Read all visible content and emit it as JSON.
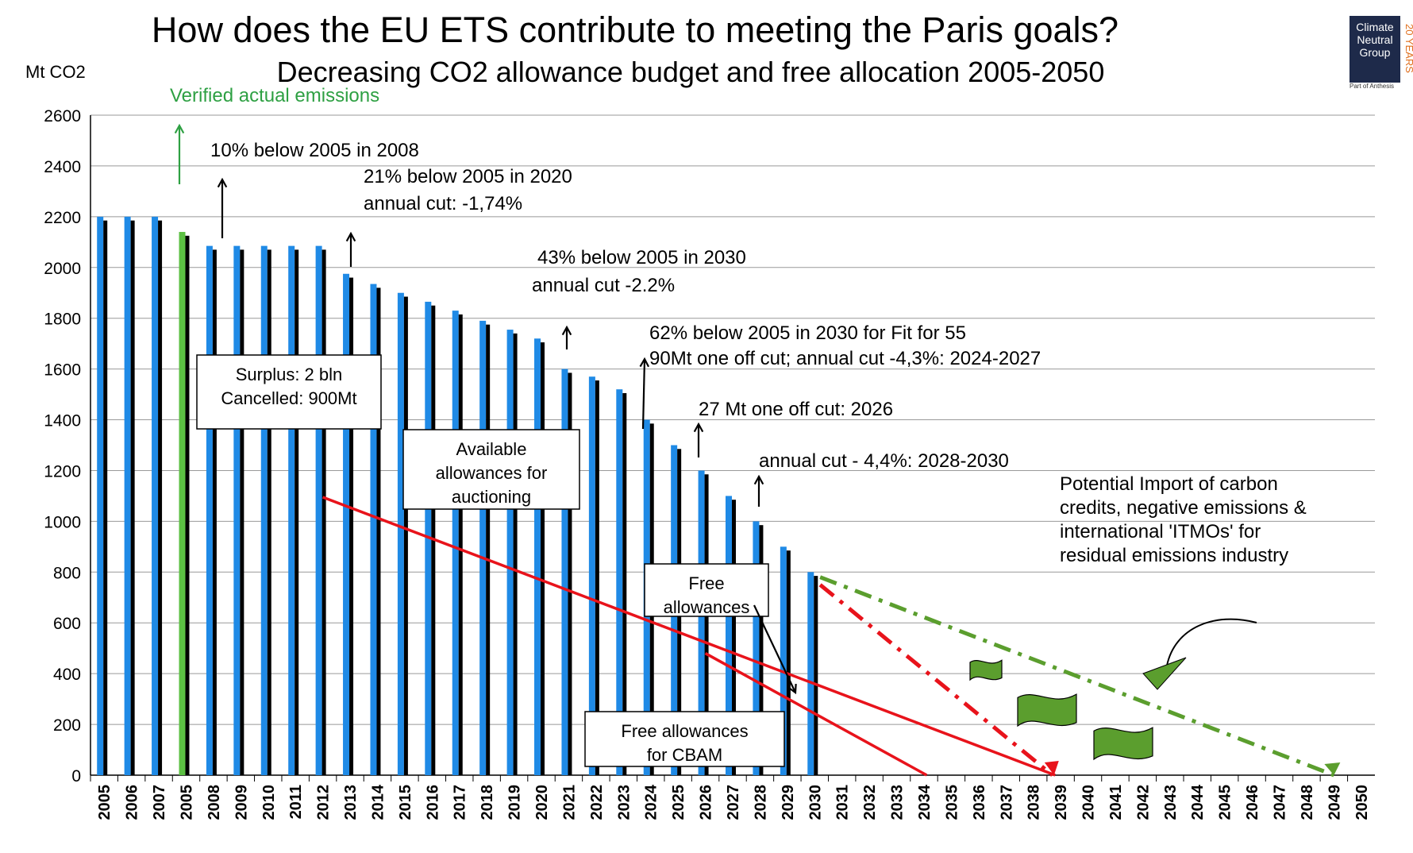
{
  "header": {
    "title": "How does the EU ETS contribute to meeting the Paris goals?",
    "subtitle": "Decreasing CO2 allowance budget and free allocation  2005-2050",
    "y_unit": "Mt CO2"
  },
  "logo": {
    "lines": [
      "Climate",
      "Neutral",
      "Group"
    ],
    "sub": "Part of Anthesis",
    "years": "20 YEARS"
  },
  "colors": {
    "blue_bar": "#1f8ae6",
    "black_bar": "#000000",
    "verified_bar": "#5cc043",
    "red_line": "#e8131b",
    "green_line": "#5b9e2e",
    "green_text": "#2ea043",
    "gridline": "#999999"
  },
  "chart_data": {
    "type": "bar",
    "ylim": [
      0,
      2600
    ],
    "yticks": [
      0,
      200,
      400,
      600,
      800,
      1000,
      1200,
      1400,
      1600,
      1800,
      2000,
      2200,
      2400,
      2600
    ],
    "categories": [
      "2005",
      "2006",
      "2007",
      "2005",
      "2008",
      "2009",
      "2010",
      "2011",
      "2012",
      "2013",
      "2014",
      "2015",
      "2016",
      "2017",
      "2018",
      "2019",
      "2020",
      "2021",
      "2022",
      "2023",
      "2024",
      "2025",
      "2026",
      "2027",
      "2028",
      "2029",
      "2030",
      "2031",
      "2032",
      "2033",
      "2034",
      "2035",
      "2036",
      "2037",
      "2038",
      "2039",
      "2040",
      "2041",
      "2042",
      "2043",
      "2044",
      "2045",
      "2046",
      "2047",
      "2048",
      "2049",
      "2050"
    ],
    "series": [
      {
        "values": [
          2200,
          2200,
          2200,
          2140,
          2085,
          2085,
          2085,
          2085,
          2085,
          1975,
          1935,
          1900,
          1865,
          1830,
          1790,
          1755,
          1720,
          1600,
          1570,
          1520,
          1400,
          1300,
          1200,
          1100,
          1000,
          900,
          800,
          null,
          null,
          null,
          null,
          null,
          null,
          null,
          null,
          null,
          null,
          null,
          null,
          null,
          null,
          null,
          null,
          null,
          null,
          null,
          null
        ]
      },
      {
        "values": [
          2185,
          2185,
          2185,
          2125,
          2070,
          2070,
          2070,
          2070,
          2070,
          1960,
          1920,
          1885,
          1850,
          1815,
          1775,
          1740,
          1705,
          1585,
          1555,
          1505,
          1385,
          1285,
          1185,
          1085,
          985,
          885,
          785,
          null,
          null,
          null,
          null,
          null,
          null,
          null,
          null,
          null,
          null,
          null,
          null,
          null,
          null,
          null,
          null,
          null,
          null,
          null,
          null
        ]
      }
    ],
    "highlight_index": 3,
    "lines": [
      {
        "style": "solid-red",
        "x": [
          2012,
          2038.8
        ],
        "y": [
          1095,
          0
        ]
      },
      {
        "style": "solid-red",
        "x": [
          2026,
          2034.1
        ],
        "y": [
          480,
          0
        ]
      },
      {
        "style": "dashdot-red",
        "x": [
          2030.2,
          2038.7
        ],
        "y": [
          750,
          0
        ]
      },
      {
        "style": "dashdot-green",
        "x": [
          2030.2,
          2049
        ],
        "y": [
          780,
          0
        ]
      }
    ],
    "annotations": {
      "verified": "Verified actual emissions",
      "a1": "10% below 2005 in 2008",
      "a2a": "21% below 2005 in 2020",
      "a2b": "annual cut: -1,74%",
      "a3a": "43% below 2005 in 2030",
      "a3b": "annual cut  -2.2%",
      "a4a": "62% below 2005 in 2030 for Fit for 55",
      "a4b": "90Mt one off cut; annual cut -4,3%: 2024-2027",
      "a5": "27 Mt one off cut: 2026",
      "a6": "annual cut - 4,4%:  2028-2030",
      "import_lines": [
        "Potential Import of carbon",
        "credits, negative emissions &",
        "international 'ITMOs' for",
        "residual emissions industry"
      ]
    },
    "boxes": {
      "surplus": [
        "Surplus: 2 bln",
        "Cancelled: 900Mt"
      ],
      "available": [
        "Available",
        "allowances for",
        "auctioning"
      ],
      "free": [
        "Free",
        "allowances"
      ],
      "cbam": [
        "Free allowances",
        "for CBAM"
      ]
    }
  }
}
